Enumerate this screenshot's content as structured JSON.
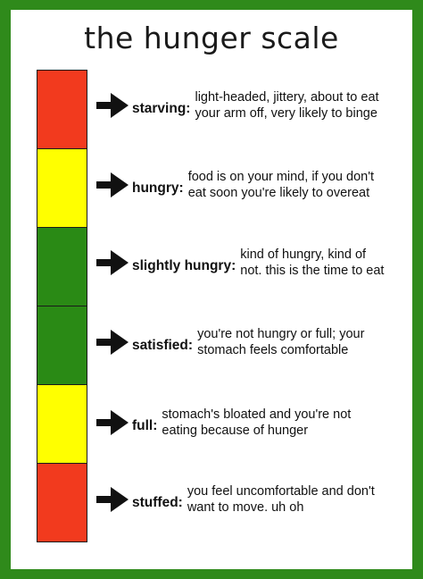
{
  "title": "the hunger scale",
  "colors": {
    "border": "#2f8a1b",
    "red": "#f23a1e",
    "yellow": "#ffff00",
    "green": "#2a8a15"
  },
  "levels": [
    {
      "label": "starving:",
      "description": "light-headed, jittery, about to eat\nyour arm off, very likely to binge",
      "color": "red"
    },
    {
      "label": "hungry:",
      "description": "food is on your mind, if you don't\neat soon you're likely to overeat",
      "color": "yellow"
    },
    {
      "label": "slightly hungry:",
      "description": "kind of hungry, kind of\nnot. this is the time to eat",
      "color": "green"
    },
    {
      "label": "satisfied:",
      "description": "you're not hungry or full; your\nstomach feels comfortable",
      "color": "green"
    },
    {
      "label": "full:",
      "description": "stomach's bloated and you're not\neating because of hunger",
      "color": "yellow"
    },
    {
      "label": "stuffed:",
      "description": "you feel uncomfortable and don't\nwant to move. uh oh",
      "color": "red"
    }
  ]
}
